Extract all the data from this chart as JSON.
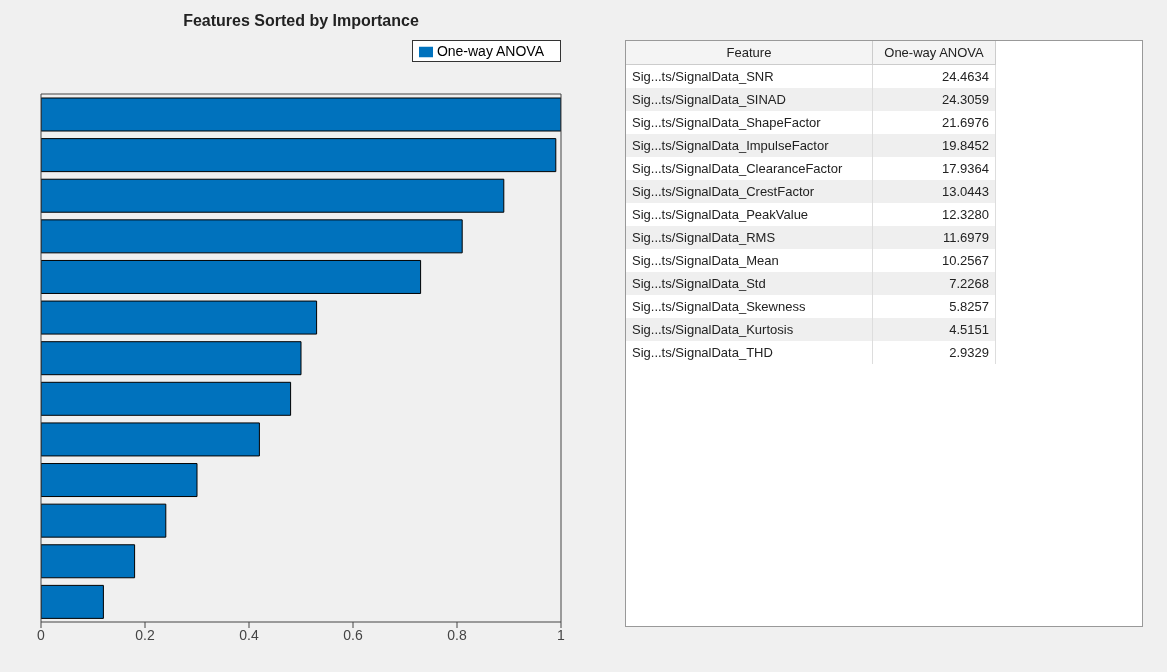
{
  "chart_data": [
    {
      "type": "bar",
      "orientation": "horizontal",
      "title": "Features Sorted by Importance",
      "categories": [
        null,
        null,
        null,
        null,
        null,
        null,
        null,
        null,
        null,
        null,
        null,
        null,
        null
      ],
      "series": [
        {
          "name": "One-way ANOVA",
          "color": "#0072bd",
          "values": [
            1,
            0.99,
            0.89,
            0.81,
            0.73,
            0.53,
            0.5,
            0.48,
            0.42,
            0.3,
            0.24,
            0.18,
            0.12
          ]
        }
      ],
      "xlim": [
        0,
        1
      ],
      "xticks": [
        0,
        0.2,
        0.4,
        0.6,
        0.8,
        1
      ],
      "tick_labels": "x",
      "grid": false,
      "legend": "top right"
    },
    {
      "type": "other",
      "xlabel": "Feature",
      "categories": [
        "Sig...ts/SignalData_SNR",
        "Sig...ts/SignalData_SINAD",
        "Sig...ts/SignalData_ShapeFactor",
        "Sig...ts/SignalData_ImpulseFactor",
        "Sig...ts/SignalData_ClearanceFactor",
        "Sig...ts/SignalData_CrestFactor",
        "Sig...ts/SignalData_PeakValue",
        "Sig...ts/SignalData_RMS",
        "Sig...ts/SignalData_Mean",
        "Sig...ts/SignalData_Std",
        "Sig...ts/SignalData_Skewness",
        "Sig...ts/SignalData_Kurtosis",
        "Sig...ts/SignalData_THD"
      ],
      "series": [
        {
          "name": "One-way ANOVA",
          "values": [
            24.4634,
            24.3059,
            21.6976,
            19.8452,
            17.9364,
            13.0443,
            12.328,
            11.6979,
            10.2567,
            7.2268,
            5.8257,
            4.5151,
            2.9329
          ],
          "value_labels": [
            "24.4634",
            "24.3059",
            "21.6976",
            "19.8452",
            "17.9364",
            "13.0443",
            "12.3280",
            "11.6979",
            "10.2567",
            "7.2268",
            "5.8257",
            "4.5151",
            "2.9329"
          ]
        }
      ]
    }
  ]
}
